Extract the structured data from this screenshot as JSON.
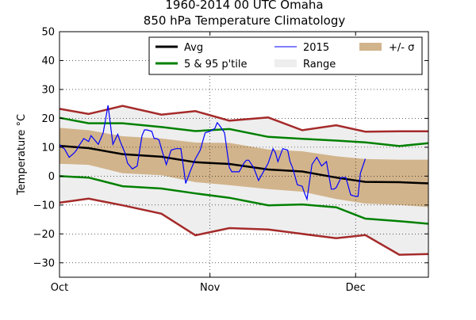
{
  "chart_data": {
    "type": "line",
    "title": {
      "line1": "1960-2014 00 UTC Omaha",
      "line2": "850 hPa Temperature Climatology"
    },
    "ylabel": "Temperature °C",
    "ylim": [
      -35,
      50
    ],
    "yticks": [
      -30,
      -20,
      -10,
      0,
      10,
      20,
      30,
      40,
      50
    ],
    "xlim": [
      1,
      77
    ],
    "xticks": [
      {
        "x": 1,
        "label": "Oct"
      },
      {
        "x": 32,
        "label": "Nov"
      },
      {
        "x": 62,
        "label": "Dec"
      }
    ],
    "grid": "dotted",
    "legend_position": "top-right",
    "legend": {
      "avg": "Avg",
      "p595": "5 & 95 p'tile",
      "range": "Range",
      "y2015": "2015",
      "sigma": "+/- σ"
    },
    "colors": {
      "avg": "#000000",
      "p595": "#008000",
      "range_fill": "#eeeeee",
      "range_line": "#a52a2a",
      "sigma_fill": "#d2b48c",
      "y2015": "#0000ff"
    },
    "days": [
      1,
      7,
      14,
      22,
      29,
      36,
      44,
      51,
      58,
      64,
      71,
      77
    ],
    "range_max": [
      23.3,
      21.5,
      24.3,
      21.3,
      22.5,
      19.2,
      20.3,
      15.9,
      17.6,
      15.4,
      15.5,
      15.5
    ],
    "range_min": [
      -9.2,
      -7.8,
      -10.1,
      -13.0,
      -20.5,
      -18.0,
      -18.5,
      -20.0,
      -21.5,
      -20.4,
      -27.2,
      -27.0
    ],
    "p95": [
      20.2,
      18.3,
      18.3,
      17.0,
      15.6,
      16.3,
      13.6,
      12.9,
      12.3,
      11.7,
      10.4,
      11.4
    ],
    "p5": [
      0.0,
      -0.5,
      -3.5,
      -4.3,
      -6.0,
      -7.5,
      -10.1,
      -9.8,
      -10.8,
      -14.7,
      -15.6,
      -16.5
    ],
    "avg": [
      10.5,
      9.7,
      7.6,
      6.7,
      4.8,
      4.2,
      2.3,
      1.6,
      -0.5,
      -2.0,
      -2.1,
      -2.5
    ],
    "sigma_upper": [
      16.7,
      15.9,
      13.8,
      13.0,
      11.6,
      11.5,
      9.2,
      8.6,
      6.9,
      5.9,
      5.7,
      5.7
    ],
    "sigma_lower": [
      4.3,
      3.9,
      1.0,
      0.3,
      -2.1,
      -3.1,
      -4.5,
      -5.4,
      -7.9,
      -9.5,
      -10.0,
      -10.7
    ],
    "series_2015": {
      "x": [
        1.0,
        1.5,
        2.0,
        3.0,
        4.0,
        4.5,
        5.0,
        6.0,
        7.0,
        7.5,
        8.0,
        9.0,
        10.0,
        11.0,
        12.0,
        13.0,
        13.5,
        14.0,
        14.5,
        15.0,
        16.0,
        17.0,
        18.0,
        18.5,
        19.0,
        20.0,
        20.5,
        21.0,
        21.5,
        22.0,
        23.0,
        24.0,
        25.0,
        26.0,
        27.0,
        28.0,
        29.0,
        30.0,
        31.0,
        32.0,
        33.0,
        33.5,
        34.0,
        35.0,
        36.0,
        36.5,
        37.0,
        38.0,
        39.0,
        39.5,
        40.0,
        41.0,
        42.0,
        43.0,
        44.0,
        45.0,
        45.5,
        46.0,
        47.0,
        48.0,
        48.5,
        49.0,
        50.0,
        51.0,
        51.5,
        52.0,
        53.0,
        54.0,
        55.0,
        56.0,
        57.0,
        57.5,
        58.0,
        59.0,
        60.0,
        61.0,
        62.0,
        62.5,
        63.0,
        64.0
      ],
      "values": [
        11.0,
        10.0,
        9.5,
        6.5,
        8.0,
        9.0,
        10.5,
        13.0,
        12.0,
        14.0,
        13.0,
        11.0,
        15.0,
        24.5,
        11.0,
        14.5,
        12.0,
        10.0,
        8.0,
        4.5,
        2.5,
        3.5,
        14.0,
        16.0,
        16.0,
        15.5,
        13.0,
        13.0,
        12.5,
        9.5,
        4.0,
        9.0,
        9.5,
        9.5,
        -2.5,
        2.0,
        6.0,
        9.0,
        15.0,
        15.5,
        16.5,
        18.5,
        17.5,
        15.0,
        3.0,
        1.5,
        1.5,
        1.5,
        4.5,
        5.5,
        5.5,
        3.0,
        -1.5,
        1.5,
        4.5,
        9.5,
        8.0,
        5.0,
        9.5,
        9.0,
        5.0,
        3.0,
        -3.0,
        -3.5,
        -6.0,
        -8.0,
        4.0,
        6.5,
        3.5,
        5.0,
        -4.5,
        -4.5,
        -4.0,
        -0.5,
        -0.5,
        -6.5,
        -7.0,
        -7.0,
        1.0,
        6.0
      ]
    }
  }
}
